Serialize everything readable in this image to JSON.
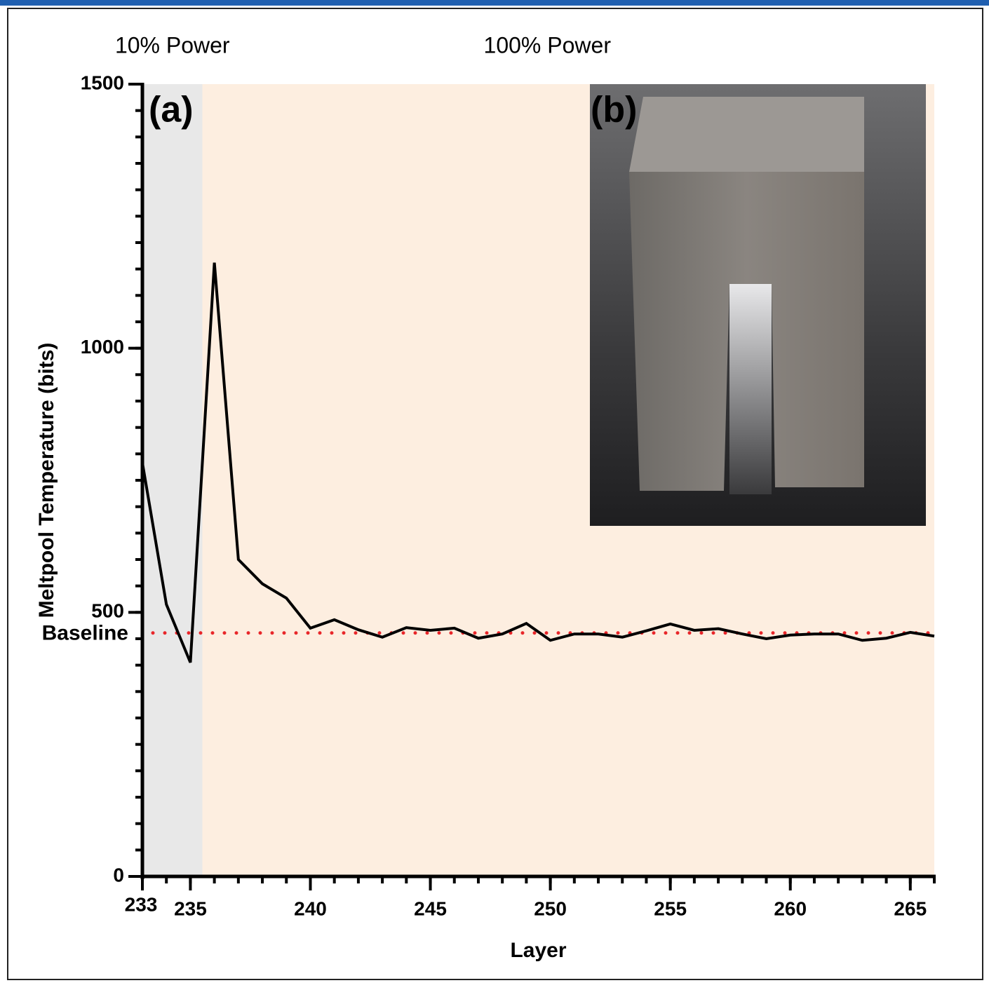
{
  "chart_data": {
    "type": "line",
    "xlabel": "Layer",
    "ylabel": "Meltpool Temperature (bits)",
    "x": [
      233,
      234,
      235,
      236,
      237,
      238,
      239,
      240,
      241,
      242,
      243,
      244,
      245,
      246,
      247,
      248,
      249,
      250,
      251,
      252,
      253,
      254,
      255,
      256,
      257,
      258,
      259,
      260,
      261,
      262,
      263,
      264,
      265,
      266
    ],
    "values": [
      783,
      515,
      405,
      1162,
      600,
      554,
      527,
      470,
      486,
      467,
      453,
      471,
      466,
      470,
      451,
      459,
      479,
      447,
      459,
      459,
      453,
      465,
      478,
      466,
      469,
      459,
      450,
      457,
      459,
      459,
      447,
      451,
      462,
      455
    ],
    "color": "#000000",
    "xlim": [
      233,
      266
    ],
    "ylim": [
      0,
      1500
    ],
    "xticks": [
      233,
      235,
      240,
      245,
      250,
      255,
      260,
      265
    ],
    "yticks": [
      0,
      500,
      1000,
      1500
    ],
    "xminorticks": [
      233,
      234,
      235,
      236,
      237,
      238,
      239,
      240,
      241,
      242,
      243,
      244,
      245,
      246,
      247,
      248,
      249,
      250,
      251,
      252,
      253,
      254,
      255,
      256,
      257,
      258,
      259,
      260,
      261,
      262,
      263,
      264,
      265,
      266
    ],
    "yminorticks": [
      0,
      50,
      100,
      150,
      200,
      250,
      300,
      350,
      400,
      450,
      500,
      550,
      600,
      650,
      700,
      750,
      800,
      850,
      900,
      950,
      1000,
      1050,
      1100,
      1150,
      1200,
      1250,
      1300,
      1350,
      1400,
      1450,
      1500
    ],
    "regions": [
      {
        "label": "10% Power",
        "start": 233,
        "end": 235.5,
        "color": "#e8e8e8"
      },
      {
        "label": "100% Power",
        "start": 235.5,
        "end": 266,
        "color": "#fdeee0"
      }
    ],
    "baseline": {
      "label": "Baseline",
      "value": 461,
      "color": "#e8262a"
    },
    "panel_labels": [
      "(a)",
      "(b)"
    ]
  }
}
